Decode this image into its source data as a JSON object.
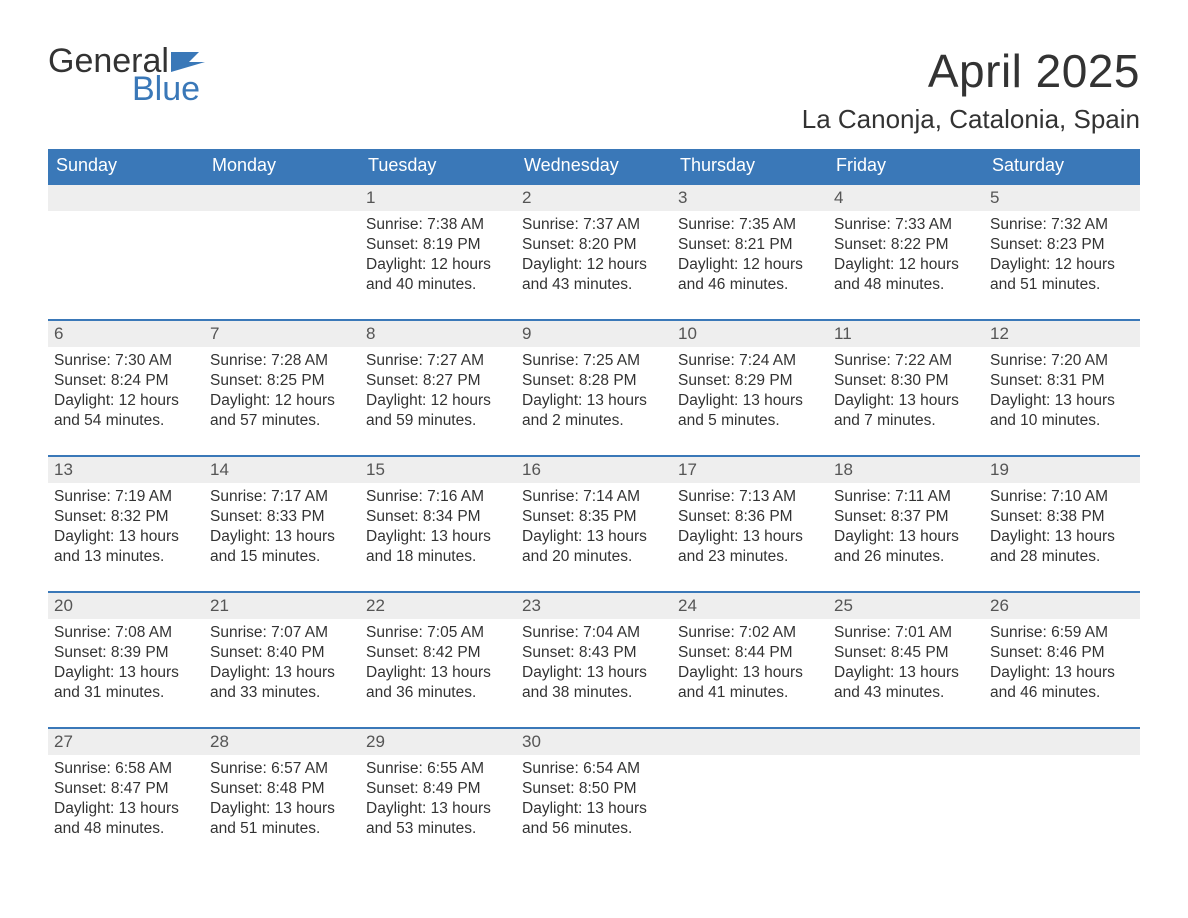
{
  "logo": {
    "word1": "General",
    "word2": "Blue",
    "flag_color": "#3a78b8"
  },
  "title": "April 2025",
  "location": "La Canonja, Catalonia, Spain",
  "colors": {
    "header_bg": "#3a78b8",
    "header_text": "#ffffff",
    "daynum_bg": "#eeeeee",
    "body_text": "#333333",
    "week_border": "#3a78b8"
  },
  "day_names": [
    "Sunday",
    "Monday",
    "Tuesday",
    "Wednesday",
    "Thursday",
    "Friday",
    "Saturday"
  ],
  "weeks": [
    [
      null,
      null,
      {
        "n": "1",
        "sunrise": "7:38 AM",
        "sunset": "8:19 PM",
        "daylight": "12 hours and 40 minutes."
      },
      {
        "n": "2",
        "sunrise": "7:37 AM",
        "sunset": "8:20 PM",
        "daylight": "12 hours and 43 minutes."
      },
      {
        "n": "3",
        "sunrise": "7:35 AM",
        "sunset": "8:21 PM",
        "daylight": "12 hours and 46 minutes."
      },
      {
        "n": "4",
        "sunrise": "7:33 AM",
        "sunset": "8:22 PM",
        "daylight": "12 hours and 48 minutes."
      },
      {
        "n": "5",
        "sunrise": "7:32 AM",
        "sunset": "8:23 PM",
        "daylight": "12 hours and 51 minutes."
      }
    ],
    [
      {
        "n": "6",
        "sunrise": "7:30 AM",
        "sunset": "8:24 PM",
        "daylight": "12 hours and 54 minutes."
      },
      {
        "n": "7",
        "sunrise": "7:28 AM",
        "sunset": "8:25 PM",
        "daylight": "12 hours and 57 minutes."
      },
      {
        "n": "8",
        "sunrise": "7:27 AM",
        "sunset": "8:27 PM",
        "daylight": "12 hours and 59 minutes."
      },
      {
        "n": "9",
        "sunrise": "7:25 AM",
        "sunset": "8:28 PM",
        "daylight": "13 hours and 2 minutes."
      },
      {
        "n": "10",
        "sunrise": "7:24 AM",
        "sunset": "8:29 PM",
        "daylight": "13 hours and 5 minutes."
      },
      {
        "n": "11",
        "sunrise": "7:22 AM",
        "sunset": "8:30 PM",
        "daylight": "13 hours and 7 minutes."
      },
      {
        "n": "12",
        "sunrise": "7:20 AM",
        "sunset": "8:31 PM",
        "daylight": "13 hours and 10 minutes."
      }
    ],
    [
      {
        "n": "13",
        "sunrise": "7:19 AM",
        "sunset": "8:32 PM",
        "daylight": "13 hours and 13 minutes."
      },
      {
        "n": "14",
        "sunrise": "7:17 AM",
        "sunset": "8:33 PM",
        "daylight": "13 hours and 15 minutes."
      },
      {
        "n": "15",
        "sunrise": "7:16 AM",
        "sunset": "8:34 PM",
        "daylight": "13 hours and 18 minutes."
      },
      {
        "n": "16",
        "sunrise": "7:14 AM",
        "sunset": "8:35 PM",
        "daylight": "13 hours and 20 minutes."
      },
      {
        "n": "17",
        "sunrise": "7:13 AM",
        "sunset": "8:36 PM",
        "daylight": "13 hours and 23 minutes."
      },
      {
        "n": "18",
        "sunrise": "7:11 AM",
        "sunset": "8:37 PM",
        "daylight": "13 hours and 26 minutes."
      },
      {
        "n": "19",
        "sunrise": "7:10 AM",
        "sunset": "8:38 PM",
        "daylight": "13 hours and 28 minutes."
      }
    ],
    [
      {
        "n": "20",
        "sunrise": "7:08 AM",
        "sunset": "8:39 PM",
        "daylight": "13 hours and 31 minutes."
      },
      {
        "n": "21",
        "sunrise": "7:07 AM",
        "sunset": "8:40 PM",
        "daylight": "13 hours and 33 minutes."
      },
      {
        "n": "22",
        "sunrise": "7:05 AM",
        "sunset": "8:42 PM",
        "daylight": "13 hours and 36 minutes."
      },
      {
        "n": "23",
        "sunrise": "7:04 AM",
        "sunset": "8:43 PM",
        "daylight": "13 hours and 38 minutes."
      },
      {
        "n": "24",
        "sunrise": "7:02 AM",
        "sunset": "8:44 PM",
        "daylight": "13 hours and 41 minutes."
      },
      {
        "n": "25",
        "sunrise": "7:01 AM",
        "sunset": "8:45 PM",
        "daylight": "13 hours and 43 minutes."
      },
      {
        "n": "26",
        "sunrise": "6:59 AM",
        "sunset": "8:46 PM",
        "daylight": "13 hours and 46 minutes."
      }
    ],
    [
      {
        "n": "27",
        "sunrise": "6:58 AM",
        "sunset": "8:47 PM",
        "daylight": "13 hours and 48 minutes."
      },
      {
        "n": "28",
        "sunrise": "6:57 AM",
        "sunset": "8:48 PM",
        "daylight": "13 hours and 51 minutes."
      },
      {
        "n": "29",
        "sunrise": "6:55 AM",
        "sunset": "8:49 PM",
        "daylight": "13 hours and 53 minutes."
      },
      {
        "n": "30",
        "sunrise": "6:54 AM",
        "sunset": "8:50 PM",
        "daylight": "13 hours and 56 minutes."
      },
      null,
      null,
      null
    ]
  ],
  "labels": {
    "sunrise": "Sunrise: ",
    "sunset": "Sunset: ",
    "daylight": "Daylight: "
  }
}
